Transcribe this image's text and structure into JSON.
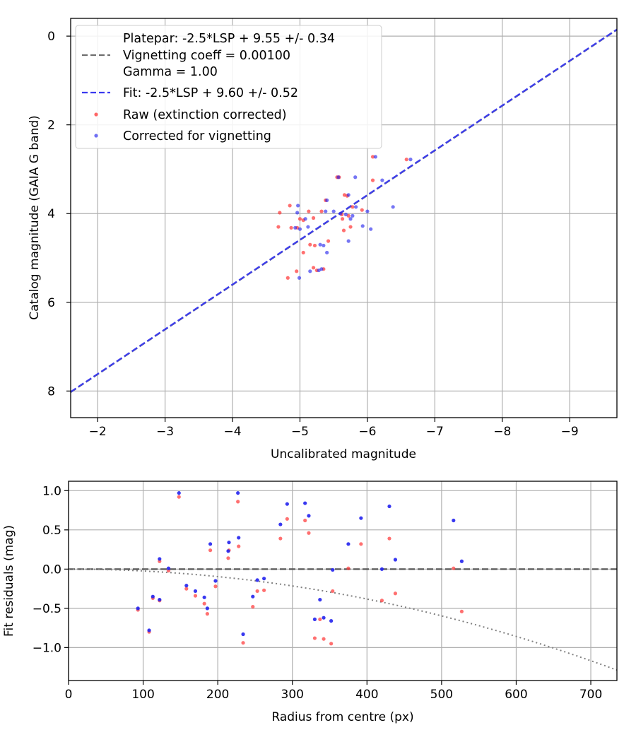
{
  "chart_data": [
    {
      "type": "scatter",
      "xlabel": "Uncalibrated magnitude",
      "ylabel": "Catalog magnitude (GAIA G band)",
      "xlim": [
        -1.6,
        -9.7
      ],
      "ylim": [
        8.6,
        -0.4
      ],
      "xticks": [
        -2,
        -3,
        -4,
        -5,
        -6,
        -7,
        -8,
        -9
      ],
      "yticks": [
        0,
        2,
        4,
        6,
        8
      ],
      "xtick_labels": [
        "−2",
        "−3",
        "−4",
        "−5",
        "−6",
        "−7",
        "−8",
        "−9"
      ],
      "ytick_labels": [
        "0",
        "2",
        "4",
        "6",
        "8"
      ],
      "grid": true,
      "legend_position": "top-left",
      "legend": [
        "Platepar: -2.5*LSP + 9.55 +/- 0.34",
        "Vignetting coeff = 0.00100",
        "Gamma = 1.00",
        "Fit: -2.5*LSP + 9.60 +/- 0.52",
        "Raw (extinction corrected)",
        "Corrected for vignetting"
      ],
      "lines": [
        {
          "name": "Platepar",
          "slope_lsp": -2.5,
          "intercept": 9.55,
          "x_range": [
            -1.6,
            -9.7
          ],
          "color": "#6e6e6e",
          "style": "dashed"
        },
        {
          "name": "Fit",
          "slope_lsp": -2.5,
          "intercept": 9.6,
          "x_range": [
            -1.6,
            -9.7
          ],
          "color": "#3a3af0",
          "style": "dashed"
        }
      ],
      "series": [
        {
          "name": "Raw (extinction corrected)",
          "color": "#ff3333",
          "points": [
            [
              -4.7,
              3.98
            ],
            [
              -4.85,
              3.82
            ],
            [
              -4.68,
              4.3
            ],
            [
              -4.87,
              4.32
            ],
            [
              -4.96,
              4.32
            ],
            [
              -5.0,
              4.12
            ],
            [
              -5.05,
              4.15
            ],
            [
              -5.13,
              3.95
            ],
            [
              -5.2,
              4.1
            ],
            [
              -5.15,
              4.7
            ],
            [
              -5.22,
              4.72
            ],
            [
              -5.05,
              4.88
            ],
            [
              -4.95,
              5.3
            ],
            [
              -4.82,
              5.45
            ],
            [
              -5.2,
              5.22
            ],
            [
              -5.25,
              5.28
            ],
            [
              -5.35,
              5.25
            ],
            [
              -5.32,
              3.95
            ],
            [
              -5.38,
              3.7
            ],
            [
              -5.42,
              4.62
            ],
            [
              -5.55,
              3.18
            ],
            [
              -5.58,
              3.18
            ],
            [
              -5.62,
              4.02
            ],
            [
              -5.66,
              3.58
            ],
            [
              -5.7,
              3.6
            ],
            [
              -5.72,
              4.05
            ],
            [
              -5.75,
              4.3
            ],
            [
              -5.65,
              4.38
            ],
            [
              -5.63,
              4.12
            ],
            [
              -5.78,
              3.85
            ],
            [
              -5.92,
              3.92
            ],
            [
              -6.08,
              3.25
            ],
            [
              -6.08,
              2.72
            ],
            [
              -6.58,
              2.78
            ]
          ]
        },
        {
          "name": "Corrected for vignetting",
          "color": "#2222ee",
          "points": [
            [
              -4.97,
              3.82
            ],
            [
              -4.96,
              3.98
            ],
            [
              -4.93,
              4.32
            ],
            [
              -5.0,
              4.35
            ],
            [
              -4.99,
              5.45
            ],
            [
              -5.08,
              4.12
            ],
            [
              -5.12,
              4.3
            ],
            [
              -5.15,
              5.3
            ],
            [
              -5.28,
              5.28
            ],
            [
              -5.32,
              5.25
            ],
            [
              -5.3,
              4.7
            ],
            [
              -5.35,
              4.72
            ],
            [
              -5.38,
              3.95
            ],
            [
              -5.4,
              4.88
            ],
            [
              -5.4,
              3.7
            ],
            [
              -5.5,
              3.95
            ],
            [
              -5.57,
              3.18
            ],
            [
              -5.6,
              4.0
            ],
            [
              -5.68,
              4.02
            ],
            [
              -5.72,
              3.58
            ],
            [
              -5.72,
              4.62
            ],
            [
              -5.75,
              4.12
            ],
            [
              -5.78,
              4.05
            ],
            [
              -5.83,
              3.85
            ],
            [
              -5.82,
              3.18
            ],
            [
              -5.93,
              4.28
            ],
            [
              -6.0,
              3.95
            ],
            [
              -6.05,
              4.35
            ],
            [
              -6.12,
              2.72
            ],
            [
              -6.22,
              3.25
            ],
            [
              -6.38,
              3.85
            ],
            [
              -6.64,
              2.78
            ]
          ]
        }
      ]
    },
    {
      "type": "scatter",
      "xlabel": "Radius from centre (px)",
      "ylabel": "Fit residuals (mag)",
      "xlim": [
        0,
        735
      ],
      "ylim": [
        -1.42,
        1.12
      ],
      "xticks": [
        0,
        100,
        200,
        300,
        400,
        500,
        600,
        700
      ],
      "yticks": [
        1.0,
        0.5,
        0.0,
        -0.5,
        -1.0
      ],
      "xtick_labels": [
        "0",
        "100",
        "200",
        "300",
        "400",
        "500",
        "600",
        "700"
      ],
      "ytick_labels": [
        "1.0",
        "0.5",
        "0.0",
        "−0.5",
        "−1.0"
      ],
      "grid": true,
      "lines": [
        {
          "name": "zero",
          "value": 0.0,
          "color": "#555555",
          "style": "dashed"
        },
        {
          "name": "vignetting",
          "coeff": 0.001,
          "color": "#808080",
          "style": "dotted"
        }
      ],
      "series": [
        {
          "name": "Raw (extinction corrected)",
          "color": "#ff3333",
          "points": [
            [
              93,
              -0.52
            ],
            [
              108,
              -0.8
            ],
            [
              113,
              -0.37
            ],
            [
              122,
              -0.4
            ],
            [
              122,
              0.1
            ],
            [
              134,
              -0.02
            ],
            [
              148,
              0.92
            ],
            [
              158,
              -0.25
            ],
            [
              170,
              -0.34
            ],
            [
              182,
              -0.44
            ],
            [
              186,
              -0.57
            ],
            [
              190,
              0.24
            ],
            [
              197,
              -0.22
            ],
            [
              214,
              0.14
            ],
            [
              215,
              0.24
            ],
            [
              227,
              0.86
            ],
            [
              228,
              0.29
            ],
            [
              234,
              -0.94
            ],
            [
              247,
              -0.48
            ],
            [
              253,
              -0.28
            ],
            [
              262,
              -0.27
            ],
            [
              284,
              0.39
            ],
            [
              293,
              0.64
            ],
            [
              317,
              0.62
            ],
            [
              322,
              0.46
            ],
            [
              330,
              -0.88
            ],
            [
              337,
              -0.64
            ],
            [
              342,
              -0.89
            ],
            [
              352,
              -0.95
            ],
            [
              354,
              -0.28
            ],
            [
              375,
              0.01
            ],
            [
              392,
              0.32
            ],
            [
              420,
              -0.4
            ],
            [
              430,
              0.39
            ],
            [
              438,
              -0.31
            ],
            [
              516,
              0.01
            ],
            [
              527,
              -0.54
            ]
          ]
        },
        {
          "name": "Corrected for vignetting",
          "color": "#2222ee",
          "points": [
            [
              93,
              -0.5
            ],
            [
              108,
              -0.78
            ],
            [
              113,
              -0.35
            ],
            [
              122,
              -0.39
            ],
            [
              122,
              0.13
            ],
            [
              134,
              0.01
            ],
            [
              148,
              0.97
            ],
            [
              158,
              -0.21
            ],
            [
              170,
              -0.28
            ],
            [
              182,
              -0.36
            ],
            [
              186,
              -0.5
            ],
            [
              190,
              0.32
            ],
            [
              197,
              -0.15
            ],
            [
              214,
              0.23
            ],
            [
              215,
              0.34
            ],
            [
              227,
              0.97
            ],
            [
              228,
              0.4
            ],
            [
              234,
              -0.83
            ],
            [
              247,
              -0.35
            ],
            [
              253,
              -0.14
            ],
            [
              262,
              -0.12
            ],
            [
              284,
              0.57
            ],
            [
              293,
              0.83
            ],
            [
              317,
              0.84
            ],
            [
              322,
              0.68
            ],
            [
              330,
              -0.64
            ],
            [
              337,
              -0.39
            ],
            [
              342,
              -0.62
            ],
            [
              352,
              -0.66
            ],
            [
              354,
              -0.01
            ],
            [
              375,
              0.32
            ],
            [
              392,
              0.65
            ],
            [
              420,
              0.0
            ],
            [
              430,
              0.8
            ],
            [
              438,
              0.12
            ],
            [
              516,
              0.62
            ],
            [
              527,
              0.1
            ]
          ]
        }
      ]
    }
  ]
}
